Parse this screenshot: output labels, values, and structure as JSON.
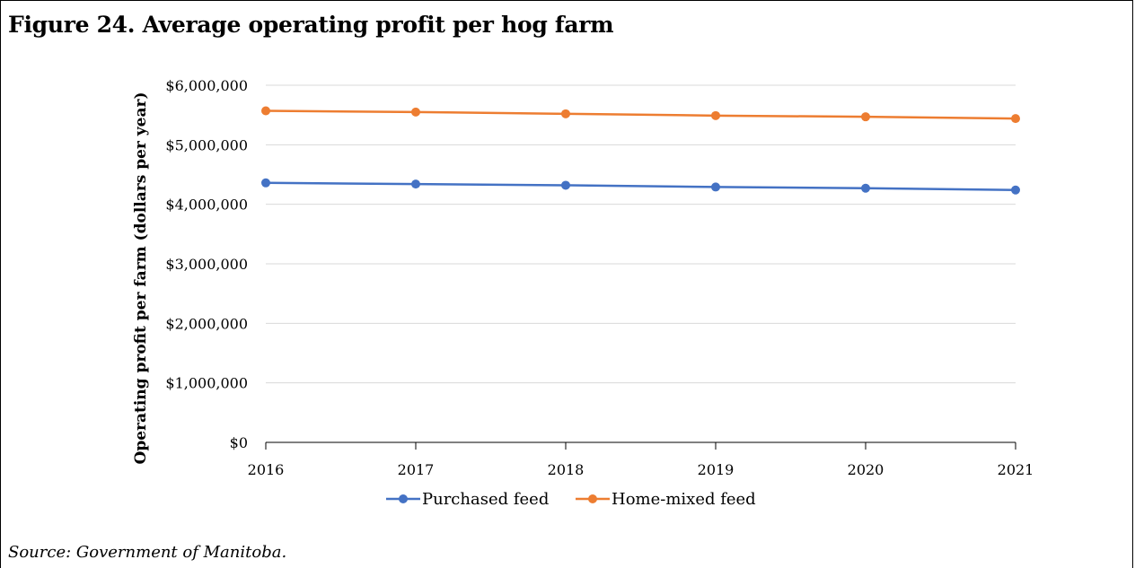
{
  "figure": {
    "title": "Figure 24. Average operating profit per hog farm",
    "source": "Source: Government of Manitoba."
  },
  "chart_data": {
    "type": "line",
    "title": "",
    "xlabel": "",
    "ylabel": "Operating profit per farm (dollars per year)",
    "x": [
      "2016",
      "2017",
      "2018",
      "2019",
      "2020",
      "2021"
    ],
    "ylim": [
      0,
      6000000
    ],
    "yticks": [
      0,
      1000000,
      2000000,
      3000000,
      4000000,
      5000000,
      6000000
    ],
    "ytick_labels": [
      "$0",
      "$1,000,000",
      "$2,000,000",
      "$3,000,000",
      "$4,000,000",
      "$5,000,000",
      "$6,000,000"
    ],
    "grid": true,
    "legend": "bottom",
    "series": [
      {
        "name": "Purchased feed",
        "color": "#4472C4",
        "values": [
          4360000,
          4340000,
          4320000,
          4290000,
          4270000,
          4240000
        ]
      },
      {
        "name": "Home-mixed feed",
        "color": "#ED7D31",
        "values": [
          5570000,
          5550000,
          5520000,
          5490000,
          5470000,
          5440000
        ]
      }
    ]
  }
}
